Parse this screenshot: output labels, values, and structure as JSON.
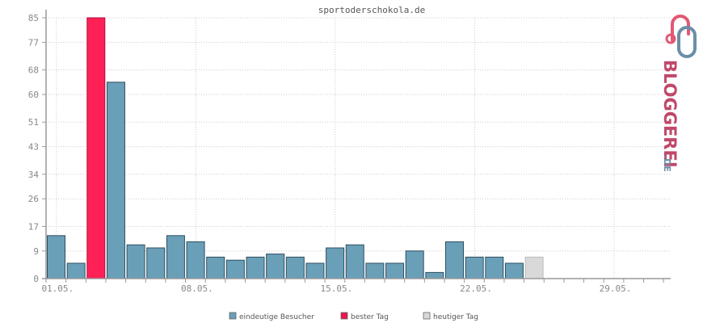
{
  "chart_data": {
    "type": "bar",
    "title": "sportoderschokola.de",
    "xlabel": "",
    "ylabel": "",
    "ylim": [
      0,
      85
    ],
    "yticks": [
      0,
      9,
      17,
      26,
      34,
      43,
      51,
      60,
      68,
      77,
      85
    ],
    "days": 31,
    "xtick_labels": [
      {
        "day": 1,
        "label": "01.05."
      },
      {
        "day": 8,
        "label": "08.05."
      },
      {
        "day": 15,
        "label": "15.05."
      },
      {
        "day": 22,
        "label": "22.05."
      },
      {
        "day": 29,
        "label": "29.05."
      }
    ],
    "values": [
      14,
      5,
      85,
      64,
      11,
      10,
      14,
      12,
      7,
      6,
      7,
      8,
      7,
      5,
      10,
      11,
      5,
      5,
      9,
      2,
      12,
      7,
      7,
      5,
      7
    ],
    "best_day_index": 2,
    "today_index": 24,
    "grid": true,
    "legend_position": "bottom-center",
    "legend": [
      {
        "label": "eindeutige Besucher",
        "color": "#6a9fb8"
      },
      {
        "label": "bester Tag",
        "color": "#e8174f"
      },
      {
        "label": "heutiger Tag",
        "color": "#d9d9d9"
      }
    ],
    "colors": {
      "regular": "#6a9fb8",
      "best": "#ff2056",
      "today": "#d9d9d9",
      "axis": "#999999",
      "grid": "#cccccc"
    }
  },
  "logo": {
    "word": "BLOGGEREI",
    "suffix": ".DE",
    "icon": "bloggerei-logo-icon"
  }
}
